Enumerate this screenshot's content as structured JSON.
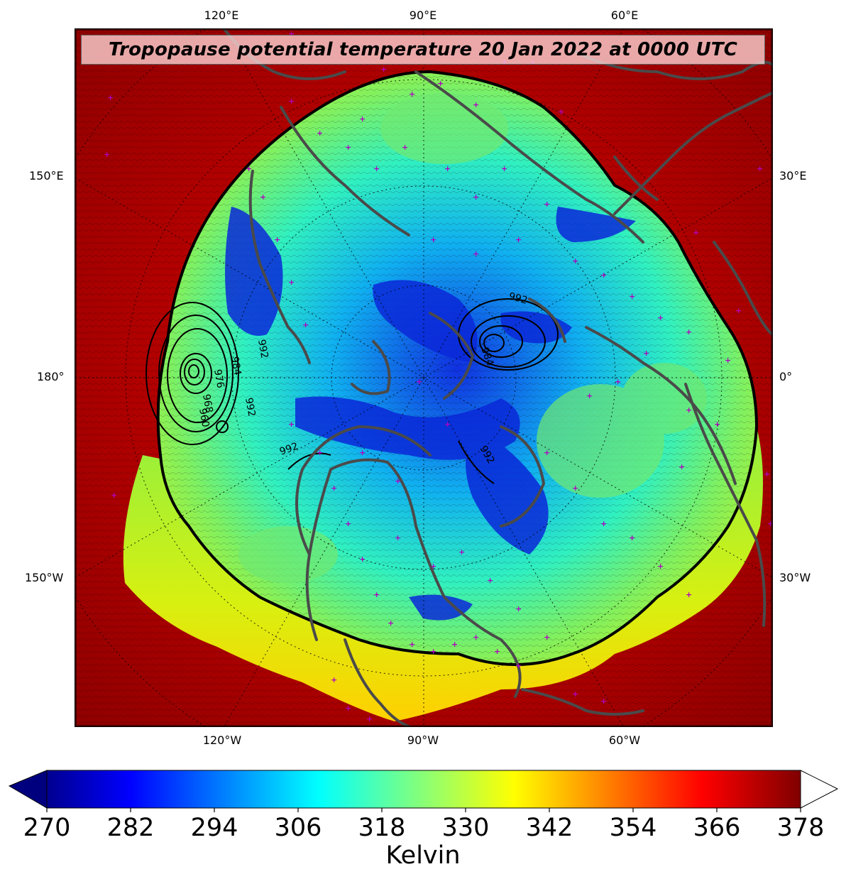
{
  "title": "Tropopause potential temperature 20 Jan 2022 at 0000 UTC",
  "map": {
    "top_lon_labels": [
      "120°E",
      "90°E",
      "60°E"
    ],
    "bottom_lon_labels": [
      "120°W",
      "90°W",
      "60°W"
    ],
    "left_lat_labels": [
      "150°E",
      "180°",
      "150°W"
    ],
    "right_lat_labels": [
      "30°E",
      "0°",
      "30°W"
    ],
    "contour_labels": [
      "992",
      "984",
      "976",
      "968",
      "960",
      "992",
      "984",
      "992",
      "992",
      "992"
    ],
    "colors": {
      "warm_background": "#a00000",
      "polar_core": "#0000c8",
      "land_outline": "#4a4a4a",
      "station_marker": "#b000c0",
      "contour": "#000000"
    }
  },
  "colorbar": {
    "min": 270,
    "max": 378,
    "extend": "both",
    "colormap": "jet",
    "ticks": [
      "270",
      "282",
      "294",
      "306",
      "318",
      "330",
      "342",
      "354",
      "366",
      "378"
    ],
    "label": "Kelvin"
  }
}
